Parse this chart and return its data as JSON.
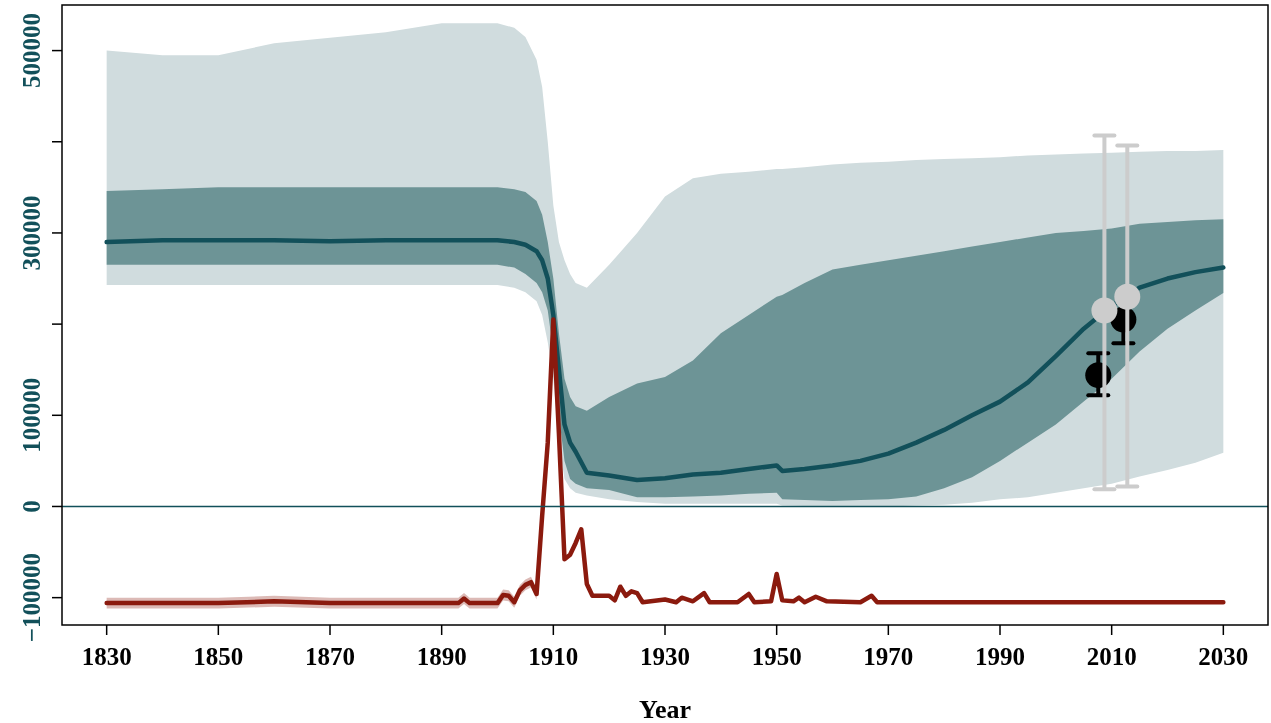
{
  "chart_data": {
    "type": "line",
    "xlabel": "Year",
    "xlim": [
      1822,
      2038
    ],
    "xticks": [
      1830,
      1850,
      1870,
      1890,
      1910,
      1930,
      1950,
      1970,
      1990,
      2010,
      2030
    ],
    "ylim": [
      -130000,
      550000
    ],
    "yticks": [
      {
        "value": -100000,
        "label": "−100000"
      },
      0,
      100000,
      {
        "value": 200000,
        "label": null
      },
      300000,
      {
        "value": 400000,
        "label": null
      },
      500000
    ],
    "grid": false,
    "ref_lines": [
      {
        "axis": "y",
        "value": 0,
        "color": "#12505a"
      }
    ],
    "series": [
      {
        "color": "#d0dcde",
        "x": [
          1830,
          1840,
          1850,
          1860,
          1870,
          1880,
          1890,
          1900,
          1903,
          1905,
          1907,
          1908,
          1909,
          1910,
          1911,
          1912,
          1913,
          1914,
          1916,
          1920,
          1925,
          1930,
          1935,
          1940,
          1945,
          1950,
          1951,
          1955,
          1960,
          1965,
          1970,
          1975,
          1980,
          1985,
          1990,
          1995,
          2000,
          2005,
          2010,
          2015,
          2020,
          2025,
          2030
        ],
        "values": [
          null,
          null,
          null,
          null,
          null,
          null,
          null,
          null,
          null,
          null,
          null,
          null,
          null,
          null,
          null,
          null,
          null,
          null,
          null,
          null,
          null,
          null,
          null,
          null,
          null,
          null,
          null,
          null,
          null,
          null,
          null,
          null,
          null,
          null,
          null,
          null,
          null,
          null,
          null,
          null,
          null,
          null,
          null
        ],
        "lower": [
          243000,
          243000,
          243000,
          243000,
          243000,
          243000,
          243000,
          243000,
          240000,
          235000,
          225000,
          210000,
          180000,
          140000,
          70000,
          30000,
          20000,
          15000,
          12000,
          8000,
          5000,
          3000,
          3000,
          3000,
          3000,
          3000,
          1000,
          500,
          0,
          0,
          0,
          1000,
          2000,
          4000,
          8000,
          10000,
          15000,
          20000,
          25000,
          33000,
          40000,
          48000,
          59000
        ],
        "upper": [
          500000,
          495000,
          495000,
          508000,
          514000,
          520000,
          530000,
          530000,
          525000,
          515000,
          490000,
          460000,
          400000,
          330000,
          290000,
          270000,
          255000,
          245000,
          240000,
          265000,
          300000,
          340000,
          360000,
          365000,
          367000,
          370000,
          370000,
          372000,
          375000,
          377000,
          378000,
          380000,
          381000,
          382000,
          383000,
          385000,
          386000,
          387000,
          388000,
          389000,
          390000,
          390000,
          391000
        ]
      },
      {
        "color": "#6d9496",
        "x": [
          1830,
          1840,
          1850,
          1860,
          1870,
          1880,
          1890,
          1900,
          1903,
          1905,
          1907,
          1908,
          1909,
          1910,
          1911,
          1912,
          1913,
          1914,
          1916,
          1920,
          1925,
          1930,
          1935,
          1940,
          1945,
          1950,
          1951,
          1955,
          1960,
          1965,
          1970,
          1975,
          1980,
          1985,
          1990,
          1995,
          2000,
          2005,
          2010,
          2015,
          2020,
          2025,
          2030
        ],
        "values": [
          null,
          null,
          null,
          null,
          null,
          null,
          null,
          null,
          null,
          null,
          null,
          null,
          null,
          null,
          null,
          null,
          null,
          null,
          null,
          null,
          null,
          null,
          null,
          null,
          null,
          null,
          null,
          null,
          null,
          null,
          null,
          null,
          null,
          null,
          null,
          null,
          null,
          null,
          null,
          null,
          null,
          null,
          null
        ],
        "lower": [
          265000,
          265000,
          265000,
          265000,
          265000,
          265000,
          265000,
          265000,
          262000,
          255000,
          245000,
          235000,
          215000,
          170000,
          100000,
          50000,
          30000,
          25000,
          20000,
          18000,
          10000,
          10000,
          11000,
          12000,
          14000,
          15000,
          8000,
          7000,
          6000,
          7000,
          8000,
          11000,
          20000,
          32000,
          50000,
          70000,
          90000,
          115000,
          140000,
          170000,
          195000,
          215000,
          234000
        ],
        "upper": [
          346000,
          348000,
          350000,
          350000,
          350000,
          350000,
          350000,
          350000,
          348000,
          345000,
          335000,
          320000,
          290000,
          250000,
          190000,
          140000,
          120000,
          110000,
          105000,
          120000,
          135000,
          142000,
          160000,
          190000,
          210000,
          230000,
          232000,
          245000,
          260000,
          265000,
          270000,
          275000,
          280000,
          285000,
          290000,
          295000,
          300000,
          302000,
          305000,
          310000,
          312000,
          314000,
          315000
        ]
      },
      {
        "color": "#12505a",
        "x": [
          1830,
          1840,
          1850,
          1860,
          1870,
          1880,
          1890,
          1900,
          1903,
          1905,
          1907,
          1908,
          1909,
          1910,
          1911,
          1912,
          1913,
          1914,
          1916,
          1920,
          1925,
          1930,
          1935,
          1940,
          1945,
          1950,
          1951,
          1955,
          1960,
          1965,
          1970,
          1975,
          1980,
          1985,
          1990,
          1995,
          2000,
          2005,
          2010,
          2015,
          2020,
          2025,
          2030
        ],
        "values": [
          290000,
          292000,
          292000,
          292000,
          291000,
          292000,
          292000,
          292000,
          290000,
          287000,
          280000,
          270000,
          250000,
          210000,
          150000,
          90000,
          70000,
          60000,
          37000,
          34000,
          29000,
          31000,
          35000,
          37000,
          41000,
          45000,
          39000,
          41000,
          45000,
          50000,
          58000,
          70000,
          84000,
          100000,
          115000,
          136000,
          165000,
          195000,
          220000,
          240000,
          250000,
          257000,
          262000
        ]
      },
      {
        "color": "#8b1a0e",
        "x": [
          1830,
          1850,
          1860,
          1870,
          1893,
          1894,
          1895,
          1900,
          1901,
          1902,
          1903,
          1904,
          1905,
          1906,
          1907,
          1908,
          1909,
          1910,
          1911,
          1912,
          1913,
          1914,
          1915,
          1916,
          1917,
          1920,
          1921,
          1922,
          1923,
          1924,
          1925,
          1926,
          1930,
          1932,
          1933,
          1935,
          1937,
          1938,
          1943,
          1945,
          1946,
          1949,
          1950,
          1951,
          1953,
          1954,
          1955,
          1957,
          1959,
          1965,
          1967,
          1968,
          2030
        ],
        "values": [
          -106000,
          -106000,
          -104000,
          -106000,
          -106000,
          -101000,
          -106000,
          -106000,
          -97000,
          -98000,
          -105000,
          -92000,
          -86000,
          -83000,
          -96000,
          -10000,
          70000,
          205000,
          80000,
          -58000,
          -53000,
          -40000,
          -25000,
          -85000,
          -98000,
          -98000,
          -103000,
          -88000,
          -98000,
          -93000,
          -95000,
          -105000,
          -102000,
          -105000,
          -100000,
          -104000,
          -95000,
          -105000,
          -105000,
          -96000,
          -105000,
          -104000,
          -74000,
          -103000,
          -104000,
          -100000,
          -105000,
          -99000,
          -104000,
          -105000,
          -98000,
          -105000,
          -105000
        ],
        "lower": [
          -112000,
          -112000,
          -110000,
          -112000,
          -112000,
          -107000,
          -112000,
          -112000,
          -103000,
          -104000,
          -111000,
          -98000,
          -92000,
          -89000,
          -102000,
          null,
          null,
          null,
          null,
          null,
          null,
          null,
          null,
          null,
          null,
          null,
          null,
          null,
          null,
          null,
          null,
          null,
          null,
          null,
          null,
          null,
          null,
          null,
          null,
          null,
          null,
          null,
          null,
          null,
          null,
          null,
          null,
          null,
          null,
          null,
          null,
          null,
          null
        ],
        "upper": [
          -100000,
          -100000,
          -98000,
          -100000,
          -100000,
          -95000,
          -100000,
          -100000,
          -91000,
          -92000,
          -99000,
          -86000,
          -80000,
          -77000,
          -90000,
          null,
          null,
          null,
          null,
          null,
          null,
          null,
          null,
          null,
          null,
          null,
          null,
          null,
          null,
          null,
          null,
          null,
          null,
          null,
          null,
          null,
          null,
          null,
          null,
          null,
          null,
          null,
          null,
          null,
          null,
          null,
          null,
          null,
          null,
          null,
          null,
          null,
          null
        ]
      },
      {
        "type": "scatter",
        "marker": "circle",
        "color": "#000000",
        "x": [
          2007.6,
          2012.1
        ],
        "values": [
          144000,
          205000
        ],
        "errors": [
          [
            122000,
            168000
          ],
          [
            179000,
            205000
          ]
        ]
      },
      {
        "type": "scatter",
        "marker": "circle",
        "color": "#cccccc",
        "x": [
          2008.7,
          2012.8
        ],
        "values": [
          215000,
          230000
        ],
        "errors": [
          [
            19000,
            407000
          ],
          [
            22000,
            396000
          ]
        ]
      }
    ]
  }
}
